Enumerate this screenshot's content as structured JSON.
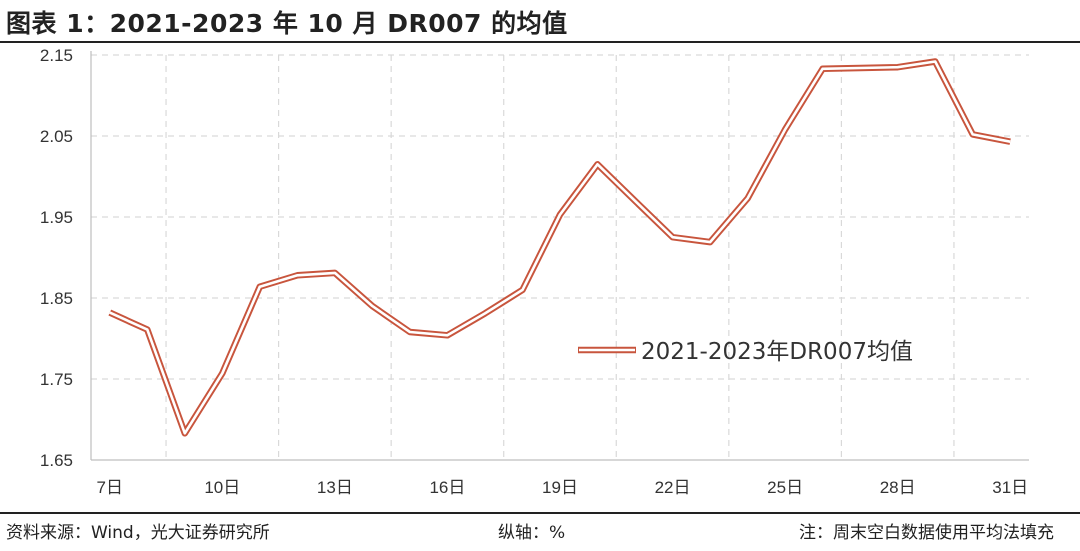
{
  "header": {
    "title": "图表 1：2021-2023 年 10 月 DR007 的均值"
  },
  "footer": {
    "source": "资料来源：Wind，光大证券研究所",
    "unit": "纵轴：%",
    "note": "注：周末空白数据使用平均法填充"
  },
  "colors": {
    "line": "#c8553d",
    "grid": "#d9d9d9",
    "axis": "#bfbfbf"
  },
  "chart_data": {
    "type": "line",
    "x": [
      7,
      8,
      9,
      10,
      11,
      12,
      13,
      14,
      15,
      16,
      17,
      18,
      19,
      20,
      21,
      22,
      23,
      24,
      25,
      26,
      27,
      28,
      29,
      30,
      31
    ],
    "x_tick_labels": [
      "7日",
      "10日",
      "13日",
      "16日",
      "19日",
      "22日",
      "25日",
      "28日",
      "31日"
    ],
    "x_tick_values": [
      7,
      10,
      13,
      16,
      19,
      22,
      25,
      28,
      31
    ],
    "xlim": [
      6.5,
      31.5
    ],
    "ylim": [
      1.65,
      2.15
    ],
    "y_ticks": [
      1.65,
      1.75,
      1.85,
      1.95,
      2.05,
      2.15
    ],
    "y_tick_labels": [
      "1.65",
      "1.75",
      "1.85",
      "1.95",
      "2.05",
      "2.15"
    ],
    "grid": true,
    "legend_position": "center-right",
    "series": [
      {
        "name": "2021-2023年DR007均值",
        "values": [
          1.832,
          1.811,
          1.683,
          1.757,
          1.864,
          1.878,
          1.881,
          1.84,
          1.808,
          1.804,
          1.831,
          1.86,
          1.953,
          2.015,
          1.97,
          1.925,
          1.919,
          1.973,
          2.058,
          2.133,
          2.134,
          2.135,
          2.142,
          2.052,
          2.043
        ]
      }
    ]
  }
}
